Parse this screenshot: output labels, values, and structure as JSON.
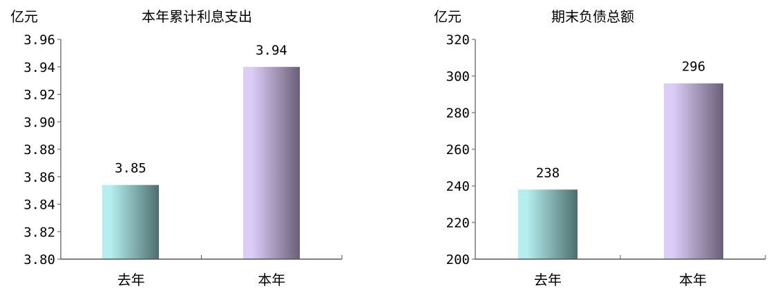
{
  "chart_data": [
    {
      "type": "bar",
      "title": "本年累计利息支出",
      "ylabel": "亿元",
      "categories": [
        "去年",
        "本年"
      ],
      "values": [
        3.854,
        3.94
      ],
      "data_labels": [
        "3.85",
        "3.94"
      ],
      "ylim": [
        3.8,
        3.96
      ],
      "yticks": [
        "3.80",
        "3.82",
        "3.84",
        "3.86",
        "3.88",
        "3.90",
        "3.92",
        "3.94",
        "3.96"
      ],
      "grid": false,
      "bar_colors": [
        [
          "#b4eeee",
          "#4e6e6e"
        ],
        [
          "#dccdf8",
          "#6a5f78"
        ]
      ]
    },
    {
      "type": "bar",
      "title": "期末负债总额",
      "ylabel": "亿元",
      "categories": [
        "去年",
        "本年"
      ],
      "values": [
        238,
        296
      ],
      "data_labels": [
        "238",
        "296"
      ],
      "ylim": [
        200,
        320
      ],
      "yticks": [
        "200",
        "220",
        "240",
        "260",
        "280",
        "300",
        "320"
      ],
      "grid": false,
      "bar_colors": [
        [
          "#b4eeee",
          "#4e6e6e"
        ],
        [
          "#dccdf8",
          "#6a5f78"
        ]
      ]
    }
  ]
}
